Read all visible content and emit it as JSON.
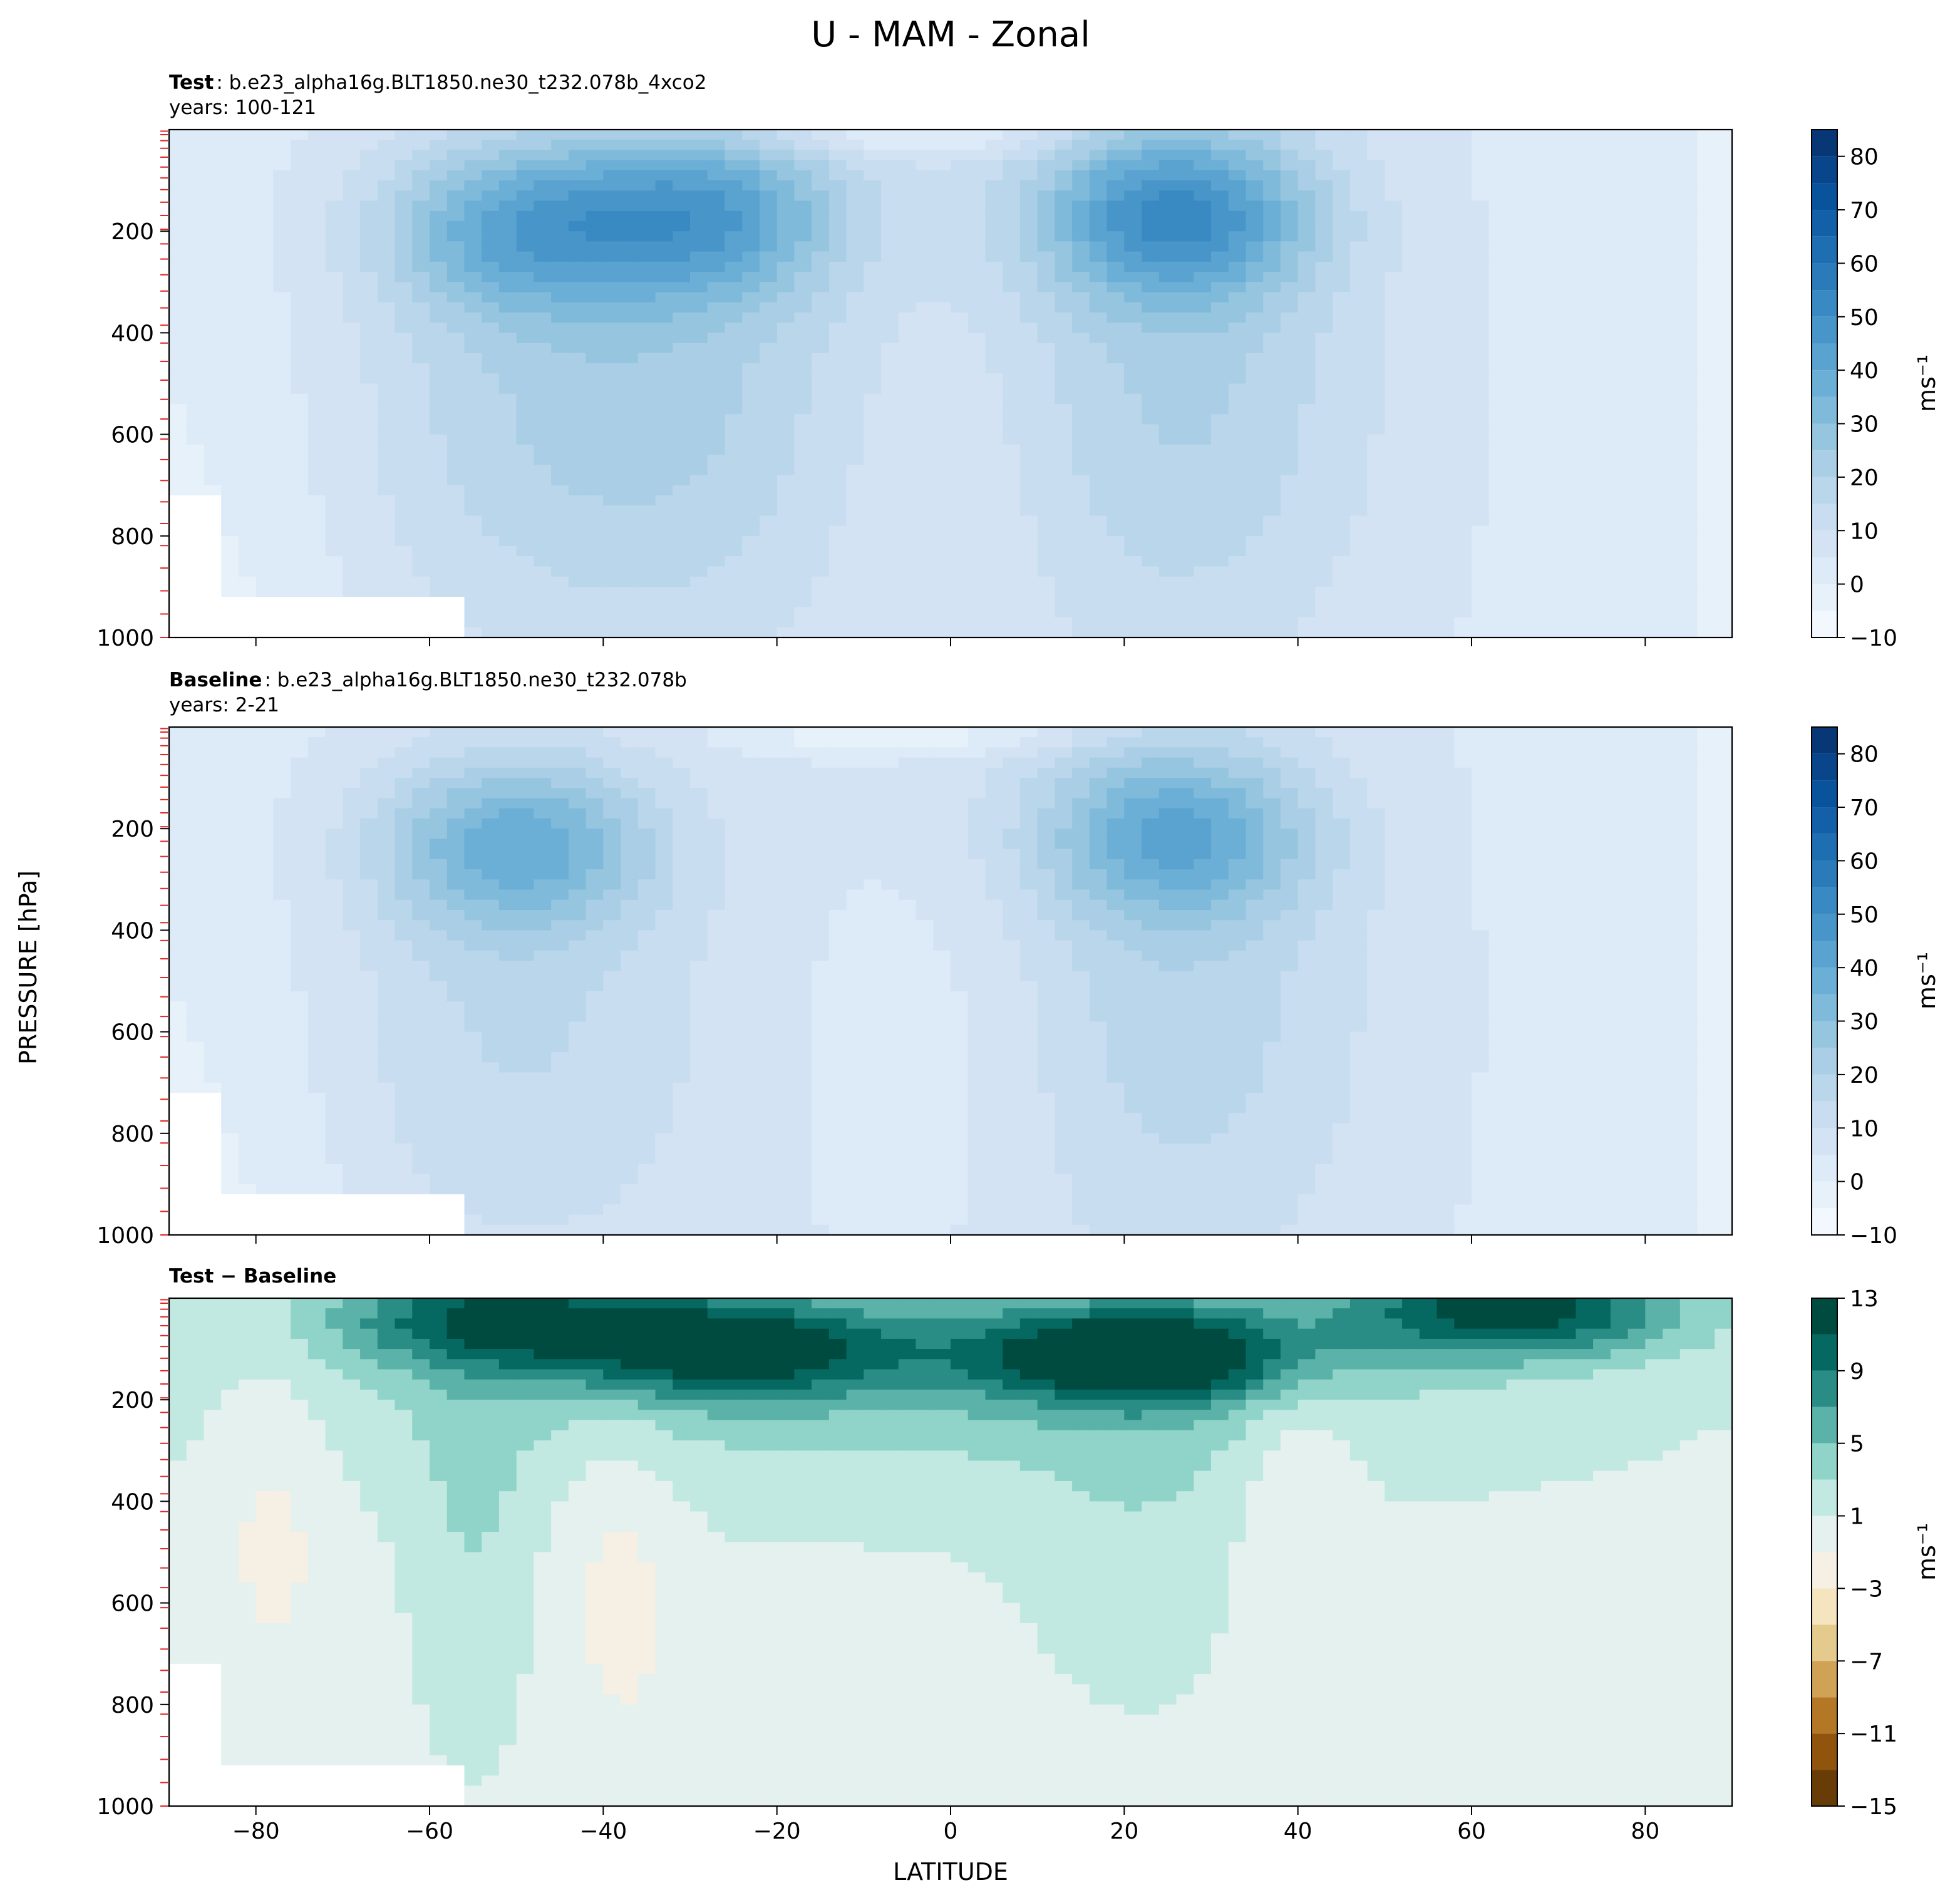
{
  "figure": {
    "title": "U - MAM - Zonal",
    "xlabel": "LATITUDE",
    "ylabel": "PRESSURE [hPa]"
  },
  "panels": [
    {
      "key": "test",
      "title_bold": "Test",
      "title_rest": ": b.e23_alpha16g.BLT1850.ne30_t232.078b_4xco2",
      "years": "years: 100-121",
      "unit_label": "ms⁻¹",
      "colormap": "blues"
    },
    {
      "key": "baseline",
      "title_bold": "Baseline",
      "title_rest": ": b.e23_alpha16g.BLT1850.ne30_t232.078b",
      "years": "years: 2-21",
      "unit_label": "ms⁻¹",
      "colormap": "blues"
    },
    {
      "key": "diff",
      "title_bold": "Test − Baseline",
      "title_rest": "",
      "years": "",
      "unit_label": "ms⁻¹",
      "colormap": "brbg"
    }
  ],
  "chart_data": [
    {
      "type": "heatmap",
      "panel": "test",
      "x_ticks": [
        -80,
        -60,
        -40,
        -20,
        0,
        20,
        40,
        60,
        80
      ],
      "y_ticks": [
        200,
        400,
        600,
        800,
        1000
      ],
      "xlim": [
        -90,
        90
      ],
      "ylim": [
        1000,
        0
      ],
      "colorbar_ticks": [
        -10,
        0,
        10,
        20,
        30,
        40,
        50,
        60,
        70,
        80
      ],
      "colorbar_range": [
        -10,
        85
      ],
      "levels": [
        -10,
        -5,
        0,
        5,
        10,
        15,
        20,
        25,
        30,
        35,
        40,
        45,
        50,
        55,
        60,
        65,
        70,
        75,
        80,
        85
      ],
      "jets": [
        {
          "lat": -50,
          "p": 190,
          "u": 36
        },
        {
          "lat": -28,
          "p": 165,
          "u": 38
        },
        {
          "lat": 26,
          "p": 165,
          "u": 46
        }
      ]
    },
    {
      "type": "heatmap",
      "panel": "baseline",
      "x_ticks": [
        -80,
        -60,
        -40,
        -20,
        0,
        20,
        40,
        60,
        80
      ],
      "y_ticks": [
        200,
        400,
        600,
        800,
        1000
      ],
      "xlim": [
        -90,
        90
      ],
      "ylim": [
        1000,
        0
      ],
      "colorbar_ticks": [
        -10,
        0,
        10,
        20,
        30,
        40,
        50,
        60,
        70,
        80
      ],
      "colorbar_range": [
        -10,
        85
      ],
      "levels": [
        -10,
        -5,
        0,
        5,
        10,
        15,
        20,
        25,
        30,
        35,
        40,
        45,
        50,
        55,
        60,
        65,
        70,
        75,
        80,
        85
      ],
      "jets": [
        {
          "lat": -50,
          "p": 230,
          "u": 37
        },
        {
          "lat": 26,
          "p": 210,
          "u": 37
        }
      ]
    },
    {
      "type": "heatmap",
      "panel": "diff",
      "x_ticks": [
        -80,
        -60,
        -40,
        -20,
        0,
        20,
        40,
        60,
        80
      ],
      "y_ticks": [
        200,
        400,
        600,
        800,
        1000
      ],
      "xlim": [
        -90,
        90
      ],
      "ylim": [
        1000,
        0
      ],
      "colorbar_ticks": [
        -15,
        -11,
        -7,
        -3,
        1,
        5,
        9,
        13
      ],
      "colorbar_range": [
        -15,
        13
      ],
      "levels": [
        -15,
        -13,
        -11,
        -9,
        -7,
        -5,
        -3,
        -1,
        1,
        3,
        5,
        7,
        9,
        11,
        13
      ],
      "features": [
        {
          "lat": 22,
          "p": 110,
          "du": 11
        },
        {
          "lat": -25,
          "p": 100,
          "du": 9
        },
        {
          "lat": 65,
          "p": 20,
          "du": 10
        },
        {
          "lat": -52,
          "p": 40,
          "du": 8
        },
        {
          "lat": -78,
          "p": 400,
          "du": -2
        },
        {
          "lat": -38,
          "p": 550,
          "du": -2
        },
        {
          "lat": 40,
          "p": 350,
          "du": -2
        }
      ]
    }
  ]
}
